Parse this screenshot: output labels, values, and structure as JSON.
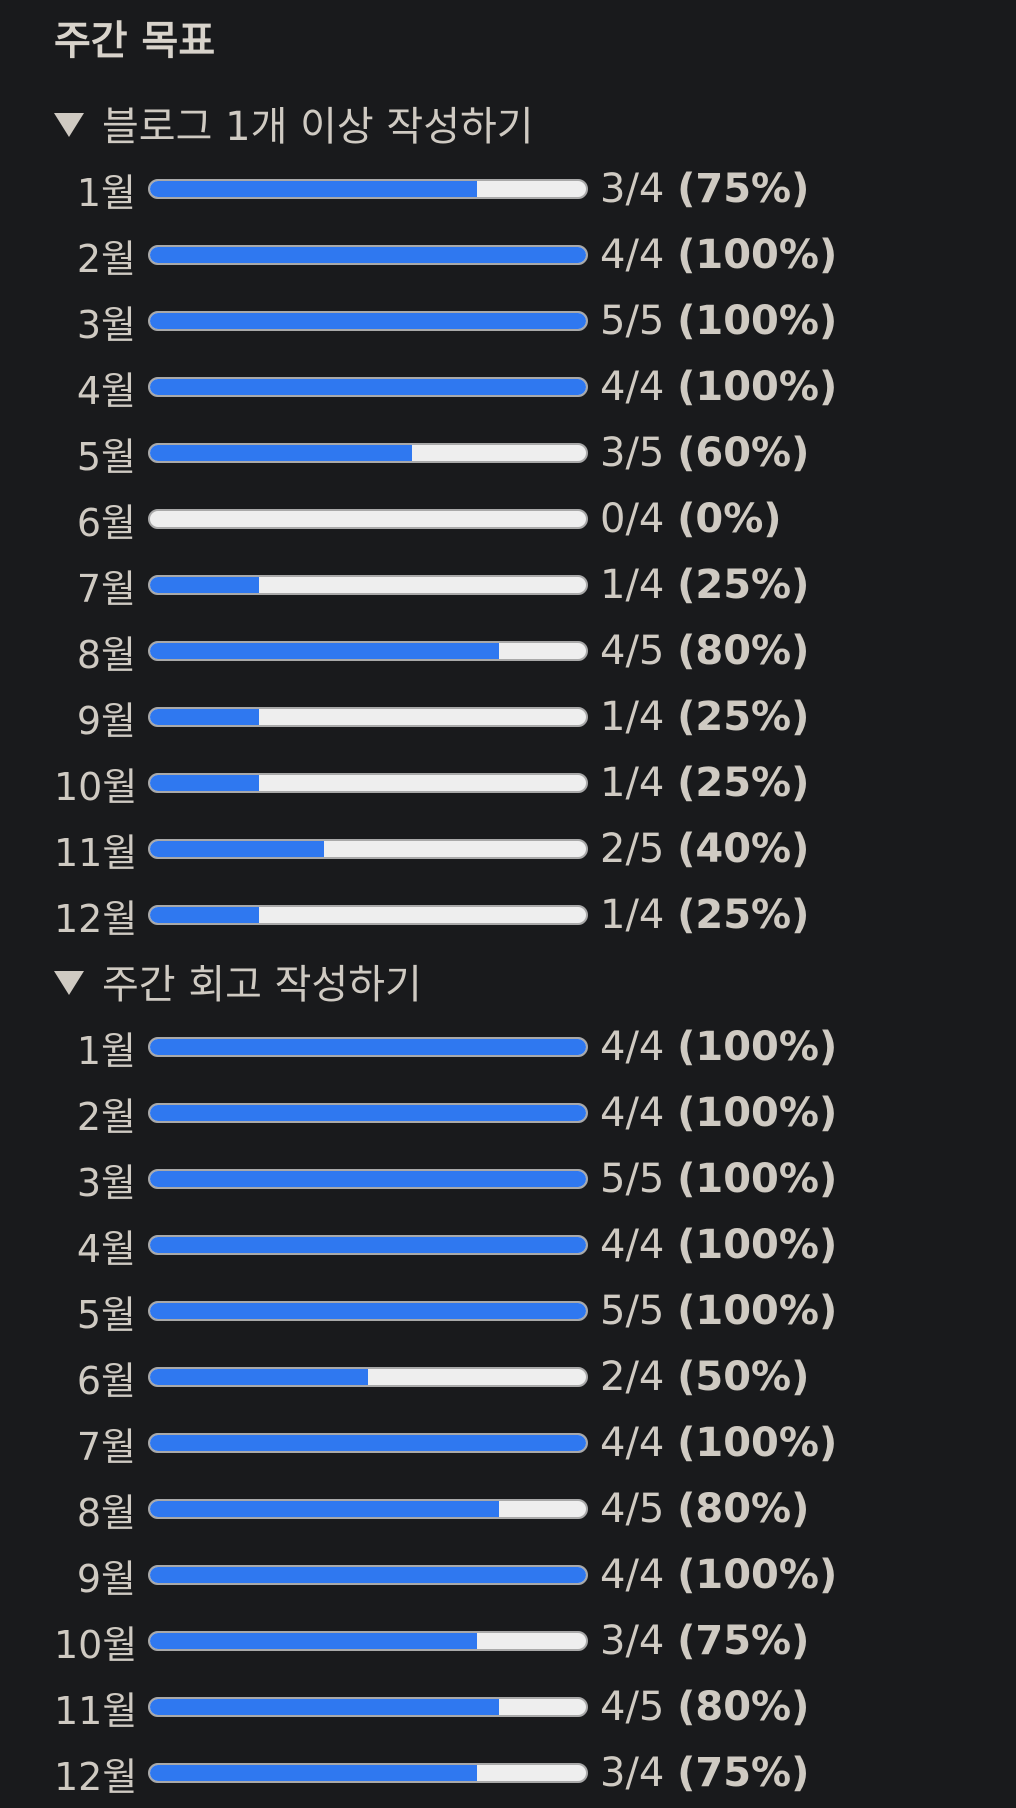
{
  "title": "주간 목표",
  "sections": [
    {
      "label": "블로그 1개 이상 작성하기",
      "rows": [
        {
          "month": "1월",
          "fraction": "3/4",
          "percent": "(75%)",
          "fill": 0.75
        },
        {
          "month": "2월",
          "fraction": "4/4",
          "percent": "(100%)",
          "fill": 1.0
        },
        {
          "month": "3월",
          "fraction": "5/5",
          "percent": "(100%)",
          "fill": 1.0
        },
        {
          "month": "4월",
          "fraction": "4/4",
          "percent": "(100%)",
          "fill": 1.0
        },
        {
          "month": "5월",
          "fraction": "3/5",
          "percent": "(60%)",
          "fill": 0.6
        },
        {
          "month": "6월",
          "fraction": "0/4",
          "percent": "(0%)",
          "fill": 0.0
        },
        {
          "month": "7월",
          "fraction": "1/4",
          "percent": "(25%)",
          "fill": 0.25
        },
        {
          "month": "8월",
          "fraction": "4/5",
          "percent": "(80%)",
          "fill": 0.8
        },
        {
          "month": "9월",
          "fraction": "1/4",
          "percent": "(25%)",
          "fill": 0.25
        },
        {
          "month": "10월",
          "fraction": "1/4",
          "percent": "(25%)",
          "fill": 0.25
        },
        {
          "month": "11월",
          "fraction": "2/5",
          "percent": "(40%)",
          "fill": 0.4
        },
        {
          "month": "12월",
          "fraction": "1/4",
          "percent": "(25%)",
          "fill": 0.25
        }
      ]
    },
    {
      "label": "주간 회고 작성하기",
      "rows": [
        {
          "month": "1월",
          "fraction": "4/4",
          "percent": "(100%)",
          "fill": 1.0
        },
        {
          "month": "2월",
          "fraction": "4/4",
          "percent": "(100%)",
          "fill": 1.0
        },
        {
          "month": "3월",
          "fraction": "5/5",
          "percent": "(100%)",
          "fill": 1.0
        },
        {
          "month": "4월",
          "fraction": "4/4",
          "percent": "(100%)",
          "fill": 1.0
        },
        {
          "month": "5월",
          "fraction": "5/5",
          "percent": "(100%)",
          "fill": 1.0
        },
        {
          "month": "6월",
          "fraction": "2/4",
          "percent": "(50%)",
          "fill": 0.5
        },
        {
          "month": "7월",
          "fraction": "4/4",
          "percent": "(100%)",
          "fill": 1.0
        },
        {
          "month": "8월",
          "fraction": "4/5",
          "percent": "(80%)",
          "fill": 0.8
        },
        {
          "month": "9월",
          "fraction": "4/4",
          "percent": "(100%)",
          "fill": 1.0
        },
        {
          "month": "10월",
          "fraction": "3/4",
          "percent": "(75%)",
          "fill": 0.75
        },
        {
          "month": "11월",
          "fraction": "4/5",
          "percent": "(80%)",
          "fill": 0.8
        },
        {
          "month": "12월",
          "fraction": "3/4",
          "percent": "(75%)",
          "fill": 0.75
        }
      ]
    }
  ],
  "colors": {
    "background": "#191a1c",
    "text": "#cfcac2",
    "bar_fill": "#2f78f0",
    "bar_track": "#eeeeee",
    "bar_border": "#a9a9a9"
  },
  "icons": {
    "toggle": "triangle-down-icon"
  }
}
